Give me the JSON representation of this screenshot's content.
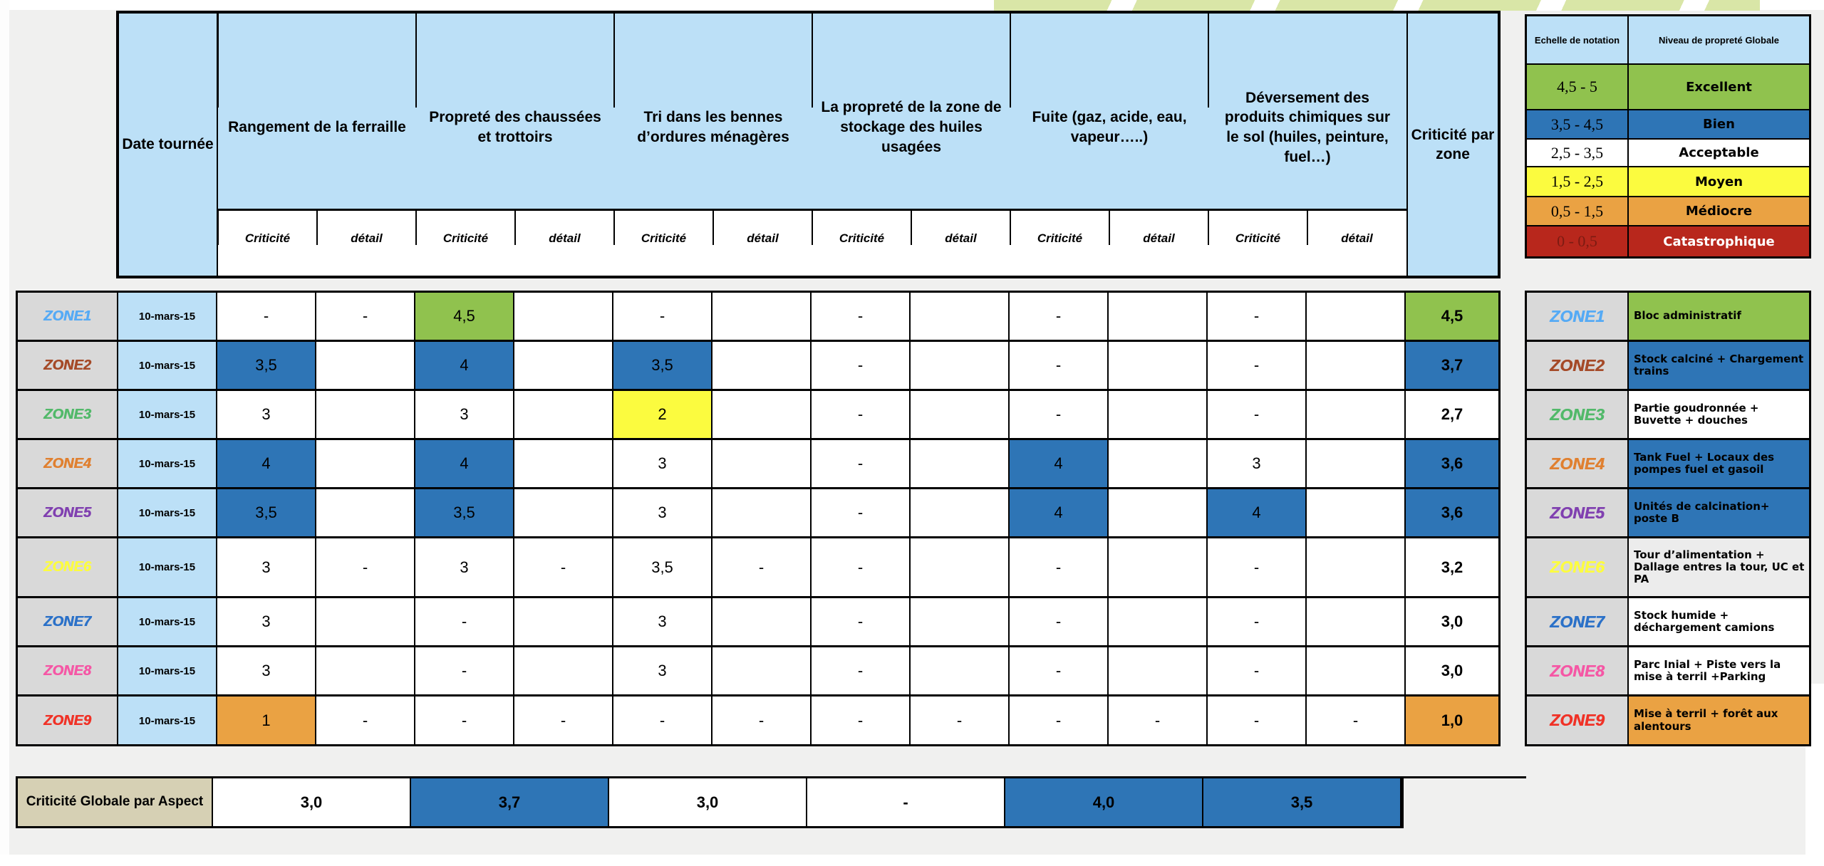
{
  "palette": {
    "blue_fill": "#2E75B6",
    "green_fill": "#90C24E",
    "yellow_fill": "#FBFB3F",
    "orange_fill": "#EAA243",
    "red_fill": "#B8271C",
    "header_blue": "#BCE0F7",
    "zone_label_gray": "#D9D9D9",
    "bottom_label_beige": "#D6D0B4"
  },
  "header": {
    "date": "Date tournée",
    "aspects": [
      "Rangement de la ferraille",
      "Propreté des chaussées et trottoirs",
      "Tri dans les bennes d’ordures ménagères",
      "La propreté de la zone de stockage des huiles usagées",
      "Fuite (gaz, acide, eau, vapeur…..)",
      "Déversement des produits chimiques sur le sol (huiles, peinture, fuel…)"
    ],
    "subs": [
      "Criticité",
      "détail",
      "Criticité",
      "détail",
      "Criticité",
      "détail",
      "Criticité",
      "détail",
      "Criticité",
      "détail",
      "Criticité",
      "détail"
    ],
    "zone_crit": "Criticité par zone"
  },
  "rows": [
    {
      "zone": "ZONE1",
      "color": "#55aaf5",
      "date": "10-mars-15",
      "c": [
        {
          "v": "-"
        },
        {
          "v": "-"
        },
        {
          "v": "4,5",
          "bg": "g"
        },
        {},
        {
          "v": "-"
        },
        {},
        {
          "v": "-"
        },
        {},
        {
          "v": "-"
        },
        {},
        {
          "v": "-"
        },
        {}
      ],
      "zc": {
        "v": "4,5",
        "bg": "g"
      }
    },
    {
      "zone": "ZONE2",
      "color": "#a54a28",
      "date": "10-mars-15",
      "c": [
        {
          "v": "3,5",
          "bg": "b"
        },
        {},
        {
          "v": "4",
          "bg": "b"
        },
        {},
        {
          "v": "3,5",
          "bg": "b"
        },
        {},
        {
          "v": "-"
        },
        {},
        {
          "v": "-"
        },
        {},
        {
          "v": "-"
        },
        {}
      ],
      "zc": {
        "v": "3,7",
        "bg": "b"
      }
    },
    {
      "zone": "ZONE3",
      "color": "#52b96a",
      "date": "10-mars-15",
      "c": [
        {
          "v": "3"
        },
        {},
        {
          "v": "3"
        },
        {},
        {
          "v": "2",
          "bg": "y"
        },
        {},
        {
          "v": "-"
        },
        {},
        {
          "v": "-"
        },
        {},
        {
          "v": "-"
        },
        {}
      ],
      "zc": {
        "v": "2,7"
      }
    },
    {
      "zone": "ZONE4",
      "color": "#e08030",
      "date": "10-mars-15",
      "c": [
        {
          "v": "4",
          "bg": "b"
        },
        {},
        {
          "v": "4",
          "bg": "b"
        },
        {},
        {
          "v": "3"
        },
        {},
        {
          "v": "-"
        },
        {},
        {
          "v": "4",
          "bg": "b"
        },
        {},
        {
          "v": "3"
        },
        {}
      ],
      "zc": {
        "v": "3,6",
        "bg": "b"
      }
    },
    {
      "zone": "ZONE5",
      "color": "#8040b0",
      "date": "10-mars-15",
      "c": [
        {
          "v": "3,5",
          "bg": "b"
        },
        {},
        {
          "v": "3,5",
          "bg": "b"
        },
        {},
        {
          "v": "3"
        },
        {},
        {
          "v": "-"
        },
        {},
        {
          "v": "4",
          "bg": "b"
        },
        {},
        {
          "v": "4",
          "bg": "b"
        },
        {}
      ],
      "zc": {
        "v": "3,6",
        "bg": "b"
      }
    },
    {
      "zone": "ZONE6",
      "color": "#fcfc40",
      "date": "10-mars-15",
      "c": [
        {
          "v": "3"
        },
        {
          "v": "-"
        },
        {
          "v": "3"
        },
        {
          "v": "-"
        },
        {
          "v": "3,5"
        },
        {
          "v": "-"
        },
        {
          "v": "-"
        },
        {},
        {
          "v": "-"
        },
        {},
        {
          "v": "-"
        },
        {}
      ],
      "zc": {
        "v": "3,2"
      }
    },
    {
      "zone": "ZONE7",
      "color": "#2b71c8",
      "date": "10-mars-15",
      "c": [
        {
          "v": "3"
        },
        {},
        {
          "v": "-"
        },
        {},
        {
          "v": "3"
        },
        {},
        {
          "v": "-"
        },
        {},
        {
          "v": "-"
        },
        {},
        {
          "v": "-"
        },
        {}
      ],
      "zc": {
        "v": "3,0"
      }
    },
    {
      "zone": "ZONE8",
      "color": "#f557a5",
      "date": "10-mars-15",
      "c": [
        {
          "v": "3"
        },
        {},
        {
          "v": "-"
        },
        {},
        {
          "v": "3"
        },
        {},
        {
          "v": "-"
        },
        {},
        {
          "v": "-"
        },
        {},
        {
          "v": "-"
        },
        {}
      ],
      "zc": {
        "v": "3,0"
      }
    },
    {
      "zone": "ZONE9",
      "color": "#f03227",
      "date": "10-mars-15",
      "c": [
        {
          "v": "1",
          "bg": "o"
        },
        {
          "v": "-"
        },
        {
          "v": "-"
        },
        {
          "v": "-"
        },
        {
          "v": "-"
        },
        {
          "v": "-"
        },
        {
          "v": "-"
        },
        {
          "v": "-"
        },
        {
          "v": "-"
        },
        {
          "v": "-"
        },
        {
          "v": "-"
        },
        {
          "v": "-"
        }
      ],
      "zc": {
        "v": "1,0",
        "bg": "o"
      }
    }
  ],
  "legend": {
    "headers": [
      "Echelle de notation",
      "Niveau de propreté Globale"
    ],
    "rows": [
      {
        "range": "4,5 - 5",
        "level": "Excellent",
        "bg": "g"
      },
      {
        "range": "3,5 - 4,5",
        "level": "Bien",
        "bg": "b"
      },
      {
        "range": "2,5 - 3,5",
        "level": "Acceptable",
        "bg": "w"
      },
      {
        "range": "1,5 - 2,5",
        "level": "Moyen",
        "bg": "y"
      },
      {
        "range": "0,5 - 1,5",
        "level": "Médiocre",
        "bg": "o"
      },
      {
        "range": "0 - 0,5",
        "level": "Catastrophique",
        "bg": "r"
      }
    ]
  },
  "zones_table": [
    {
      "zone": "ZONE1",
      "color": "#55aaf5",
      "desc": "Bloc administratif",
      "bg": "g"
    },
    {
      "zone": "ZONE2",
      "color": "#a54a28",
      "desc": "Stock calciné + Chargement trains",
      "bg": "b"
    },
    {
      "zone": "ZONE3",
      "color": "#52b96a",
      "desc": "Partie goudronnée + Buvette + douches",
      "bg": "w"
    },
    {
      "zone": "ZONE4",
      "color": "#e08030",
      "desc": "Tank Fuel + Locaux des pompes fuel et gasoil",
      "bg": "b"
    },
    {
      "zone": "ZONE5",
      "color": "#8040b0",
      "desc": "Unités de calcination+ poste B",
      "bg": "b"
    },
    {
      "zone": "ZONE6",
      "color": "#fcfc40",
      "desc": "Tour d’alimentation + Dallage entres la tour, UC et PA",
      "bg": "p"
    },
    {
      "zone": "ZONE7",
      "color": "#2b71c8",
      "desc": "Stock humide + déchargement camions",
      "bg": "w"
    },
    {
      "zone": "ZONE8",
      "color": "#f557a5",
      "desc": "Parc Inial + Piste vers la mise à terril +Parking",
      "bg": "w"
    },
    {
      "zone": "ZONE9",
      "color": "#f03227",
      "desc": "Mise à terril + forêt aux alentours",
      "bg": "o"
    }
  ],
  "bottom": {
    "label": "Criticité Globale par Aspect",
    "values": [
      {
        "v": "3,0"
      },
      {
        "v": "3,7",
        "bg": "b"
      },
      {
        "v": "3,0"
      },
      {
        "v": "-"
      },
      {
        "v": "4,0",
        "bg": "b"
      },
      {
        "v": "3,5",
        "bg": "b"
      }
    ]
  }
}
